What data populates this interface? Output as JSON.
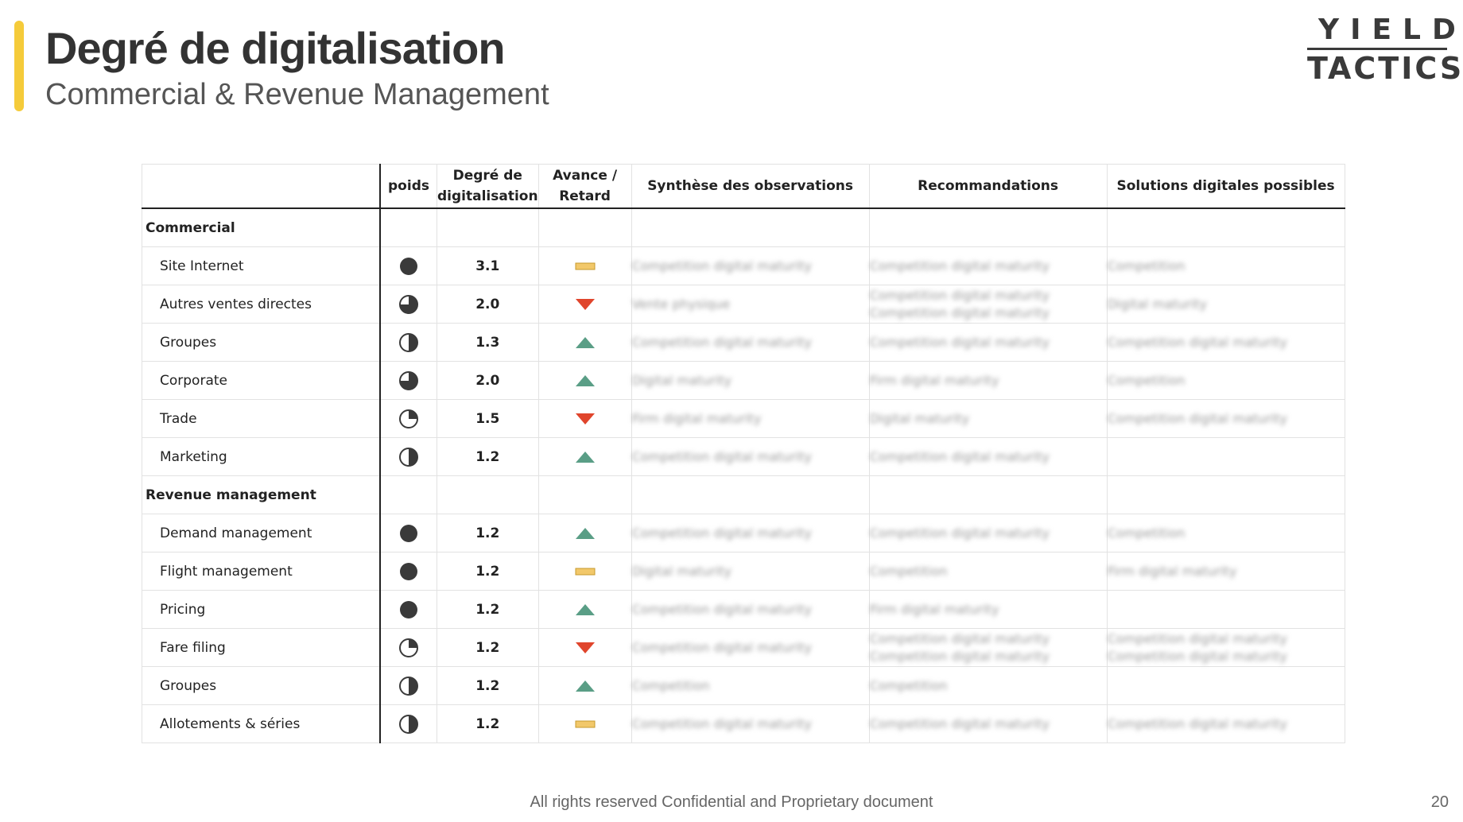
{
  "header": {
    "title": "Degré de digitalisation",
    "subtitle": "Commercial & Revenue Management",
    "logo_line1": "YIELD",
    "logo_line2": "TACTICS"
  },
  "columns": {
    "poids": "poids",
    "degre_line1": "Degré de",
    "degre_line2": "digitalisation",
    "avance_line1": "Avance /",
    "avance_line2": "Retard",
    "observations": "Synthèse des observations",
    "recommandations": "Recommandations",
    "solutions": "Solutions digitales possibles"
  },
  "icons": {
    "full": "full-circle-icon",
    "three_quarter": "three-quarter-circle-icon",
    "half": "half-circle-icon",
    "quarter": "quarter-circle-icon",
    "up": "green-up-triangle-icon",
    "down": "red-down-triangle-icon",
    "flat": "yellow-bar-icon"
  },
  "colors": {
    "accent": "#f5cb3a",
    "up": "#5a9e86",
    "down": "#e0452c",
    "flat": "#f2c86a"
  },
  "sections": {
    "commercial": {
      "label": "Commercial",
      "rows": [
        {
          "name": "Site Internet",
          "poids": "full",
          "degre": "3.1",
          "trend": "flat",
          "obs": [
            "Competition digital maturity"
          ],
          "rec": [
            "Competition digital maturity"
          ],
          "sol": [
            "Competition"
          ]
        },
        {
          "name": "Autres ventes directes",
          "poids": "three_quarter",
          "degre": "2.0",
          "trend": "down",
          "obs": [
            "Vente physique"
          ],
          "rec": [
            "Competition digital maturity",
            "Competition digital maturity"
          ],
          "sol": [
            "Digital maturity"
          ]
        },
        {
          "name": "Groupes",
          "poids": "half",
          "degre": "1.3",
          "trend": "up",
          "obs": [
            "Competition digital maturity"
          ],
          "rec": [
            "Competition digital maturity"
          ],
          "sol": [
            "Competition digital maturity"
          ]
        },
        {
          "name": "Corporate",
          "poids": "three_quarter",
          "degre": "2.0",
          "trend": "up",
          "obs": [
            "Digital maturity"
          ],
          "rec": [
            "Firm digital maturity"
          ],
          "sol": [
            "Competition"
          ]
        },
        {
          "name": "Trade",
          "poids": "quarter",
          "degre": "1.5",
          "trend": "down",
          "obs": [
            "Firm digital maturity"
          ],
          "rec": [
            "Digital maturity"
          ],
          "sol": [
            "Competition digital maturity"
          ]
        },
        {
          "name": "Marketing",
          "poids": "half",
          "degre": "1.2",
          "trend": "up",
          "obs": [
            "Competition digital maturity"
          ],
          "rec": [
            "Competition digital maturity"
          ],
          "sol": []
        }
      ]
    },
    "revenue": {
      "label": "Revenue management",
      "rows": [
        {
          "name": "Demand management",
          "poids": "full",
          "degre": "1.2",
          "trend": "up",
          "obs": [
            "Competition digital maturity"
          ],
          "rec": [
            "Competition digital maturity"
          ],
          "sol": [
            "Competition"
          ]
        },
        {
          "name": "Flight management",
          "poids": "full",
          "degre": "1.2",
          "trend": "flat",
          "obs": [
            "Digital maturity"
          ],
          "rec": [
            "Competition"
          ],
          "sol": [
            "Firm digital maturity"
          ]
        },
        {
          "name": "Pricing",
          "poids": "full",
          "degre": "1.2",
          "trend": "up",
          "obs": [
            "Competition digital maturity"
          ],
          "rec": [
            "Firm digital maturity"
          ],
          "sol": []
        },
        {
          "name": "Fare filing",
          "poids": "quarter",
          "degre": "1.2",
          "trend": "down",
          "obs": [
            "Competition digital maturity"
          ],
          "rec": [
            "Competition digital maturity",
            "Competition digital maturity"
          ],
          "sol": [
            "Competition digital maturity",
            "Competition digital maturity"
          ]
        },
        {
          "name": "Groupes",
          "poids": "half",
          "degre": "1.2",
          "trend": "up",
          "obs": [
            "Competition"
          ],
          "rec": [
            "Competition"
          ],
          "sol": []
        },
        {
          "name": "Allotements & séries",
          "poids": "half",
          "degre": "1.2",
          "trend": "flat",
          "obs": [
            "Competition digital maturity"
          ],
          "rec": [
            "Competition digital maturity"
          ],
          "sol": [
            "Competition digital maturity"
          ]
        }
      ]
    }
  },
  "footer": {
    "text": "All rights reserved Confidential and Proprietary document",
    "page": "20"
  }
}
